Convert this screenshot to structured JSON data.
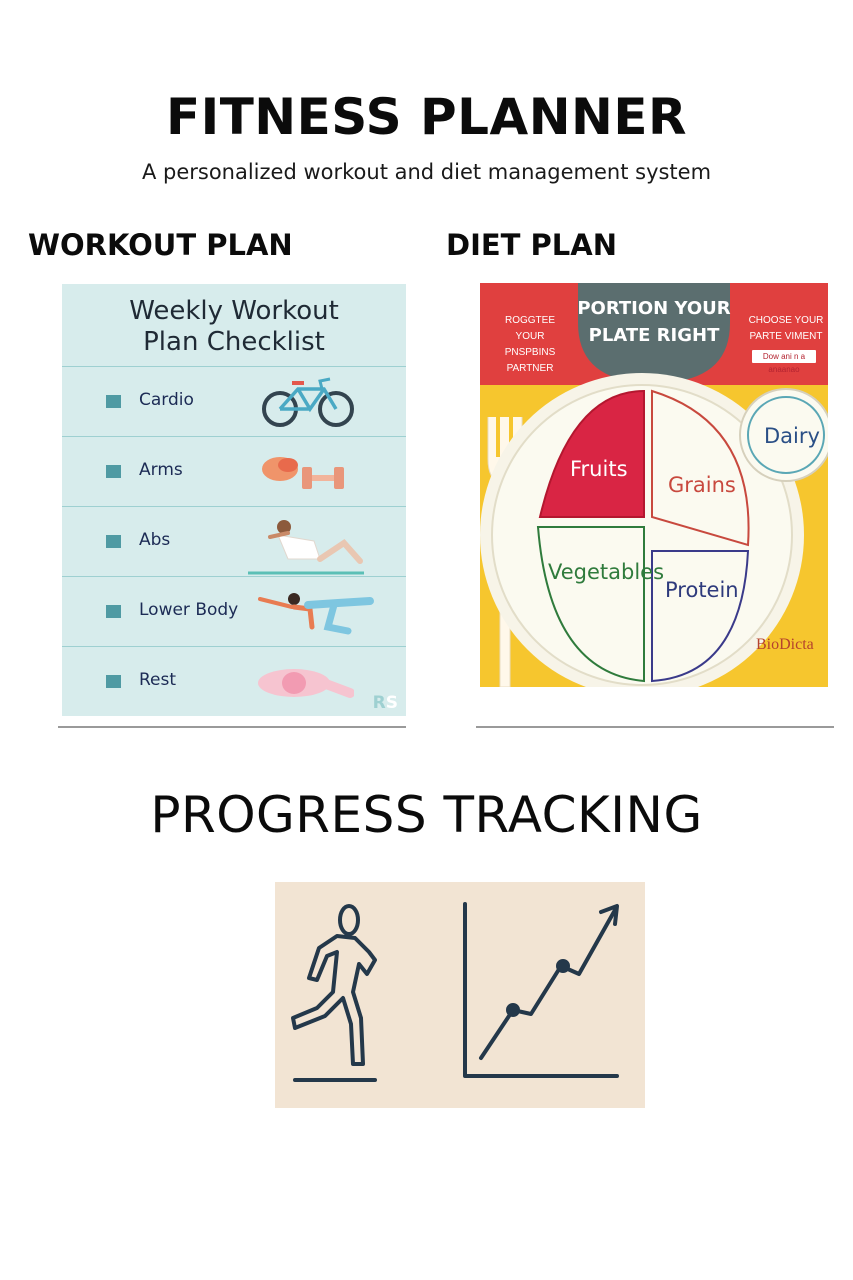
{
  "header": {
    "title": "FITNESS PLANNER",
    "subtitle": "A personalized workout and diet management system"
  },
  "workout": {
    "heading": "WORKOUT PLAN",
    "checklist_title_line1": "Weekly Workout",
    "checklist_title_line2": "Plan Checklist",
    "items": [
      {
        "label": "Cardio",
        "icon": "bicycle-icon"
      },
      {
        "label": "Arms",
        "icon": "dumbbell-icon"
      },
      {
        "label": "Abs",
        "icon": "situp-figure-icon"
      },
      {
        "label": "Lower Body",
        "icon": "balance-pose-icon"
      },
      {
        "label": "Rest",
        "icon": "resting-figure-icon"
      }
    ],
    "badge_r": "R",
    "badge_s": "S"
  },
  "diet": {
    "heading": "DIET PLAN",
    "banner_line1": "PORTION YOUR",
    "banner_line2": "PLATE RIGHT",
    "left_note": "ROGGTEE YOUR PNSPBINS PARTNER",
    "right_note": "CHOOSE YOUR PARTE VIMENT",
    "small_label": "Dow ani n a anaanao",
    "groups": {
      "fruits": "Fruits",
      "grains": "Grains",
      "vegetables": "Vegetables",
      "protein": "Protein",
      "dairy": "Dairy"
    },
    "brand": "BioDicta",
    "colors": {
      "banner": "#e0403f",
      "banner_center": "#5b6e6f",
      "background": "#f6c62e",
      "fruits": "#d92544",
      "grains": "#c8493e",
      "vegetables": "#2f7b3c",
      "protein": "#2e3a7c",
      "dairy": "#2a4f86"
    }
  },
  "progress": {
    "heading": "PROGRESS TRACKING",
    "icons": [
      "running-figure-icon",
      "growth-chart-icon"
    ]
  }
}
